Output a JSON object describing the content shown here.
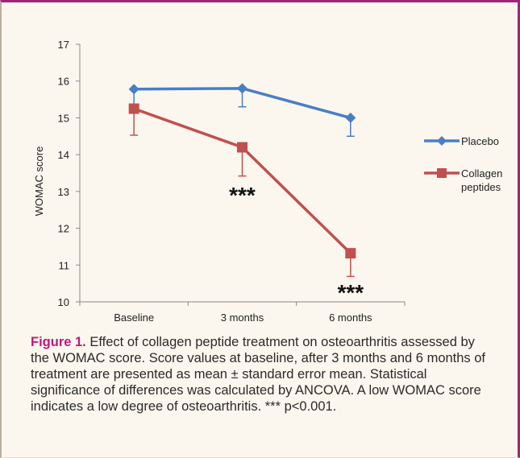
{
  "chart_data": {
    "type": "line",
    "categories": [
      "Baseline",
      "3 months",
      "6 months"
    ],
    "ylabel": "WOMAC score",
    "xlabel": "",
    "ylim": [
      10,
      17
    ],
    "yticks": [
      10,
      11,
      12,
      13,
      14,
      15,
      16,
      17
    ],
    "grid": false,
    "legend": "right",
    "series": [
      {
        "name": "Placebo",
        "color": "#4a7ec4",
        "marker": "diamond",
        "values": [
          15.78,
          15.8,
          15.0
        ],
        "error": [
          0.5,
          0.5,
          0.5
        ],
        "error_direction": "down"
      },
      {
        "name": "Collagen peptides",
        "color": "#c0504d",
        "marker": "square",
        "values": [
          15.25,
          14.2,
          11.32
        ],
        "error": [
          0.72,
          0.78,
          0.63
        ],
        "error_direction": "down"
      }
    ],
    "annotations": [
      {
        "text": "***",
        "category": "3 months",
        "y": 13.0
      },
      {
        "text": "***",
        "category": "6 months",
        "y": 10.35
      }
    ]
  },
  "caption": {
    "label": "Figure 1.",
    "text": " Effect of collagen peptide treatment on osteoarthritis assessed by the WOMAC score. Score values at baseline, after 3 months and 6 months of treatment are presented as mean ± standard error mean. Statistical significance of differences was calculated by ANCOVA. A low WOMAC score indicates a low degree of osteoarthritis. *** p<0.001."
  }
}
